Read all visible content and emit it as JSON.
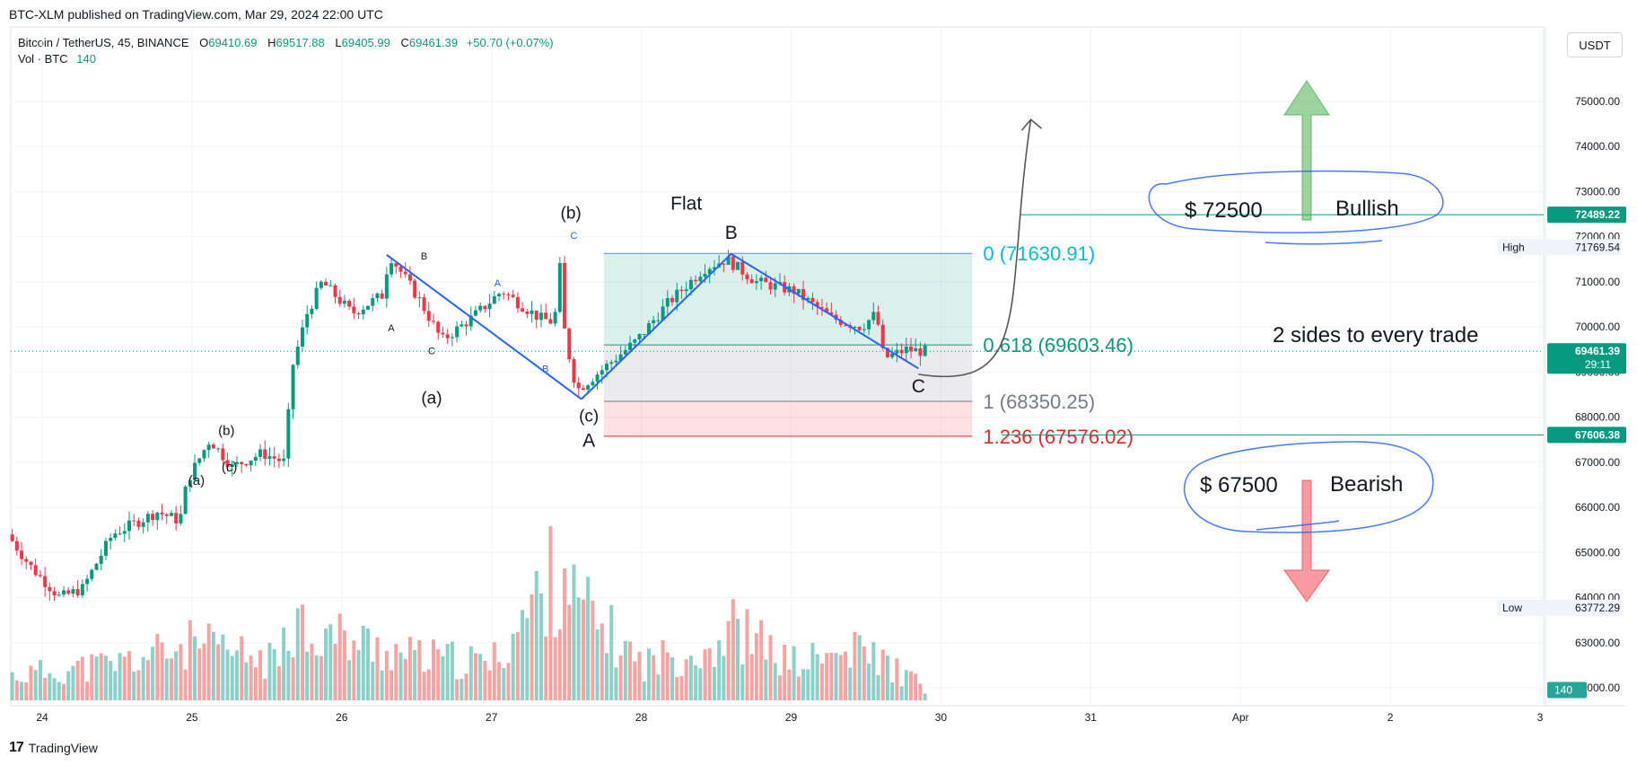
{
  "header": {
    "published": "BTC-XLM published on TradingView.com, Mar 29, 2024 22:00 UTC",
    "symbol": "Bitcoin / TetherUS, 45, BINANCE",
    "o_label": "O",
    "o_value": "69410.69",
    "h_label": "H",
    "h_value": "69517.88",
    "l_label": "L",
    "l_value": "69405.99",
    "c_label": "C",
    "c_value": "69461.39",
    "change": "+50.70 (+0.07%)",
    "vol_label": "Vol · BTC",
    "vol_value": "140",
    "currency": "USDT"
  },
  "footer": {
    "brand": "TradingView"
  },
  "colors": {
    "up": "#089981",
    "down": "#f23645",
    "volUp": "#26a69a88",
    "volDown": "#ef535088",
    "fibTop": "#00bcd4",
    "fibMid": "#089981",
    "fibGray": "#787b86",
    "fibRed": "#e0282e",
    "wave": "#2962ff",
    "grid": "#f0f3fa"
  },
  "chart_data": {
    "type": "candlestick",
    "y_ticks": [
      75000,
      74000,
      73000,
      72000,
      71000,
      70000,
      69000,
      68000,
      67000,
      66000,
      65000,
      64000,
      63000,
      62000
    ],
    "y_tick_labels": [
      "75000.00",
      "74000.00",
      "73000.00",
      "72000.00",
      "71000.00",
      "70000.00",
      "69000.00",
      "68000.00",
      "67000.00",
      "66000.00",
      "65000.00",
      "64000.00",
      "63000.00",
      "62000.00"
    ],
    "ylim": [
      61800,
      75900
    ],
    "x_ticks": [
      {
        "label": "24",
        "t": 0
      },
      {
        "label": "25",
        "t": 1
      },
      {
        "label": "26",
        "t": 2
      },
      {
        "label": "27",
        "t": 3
      },
      {
        "label": "28",
        "t": 4
      },
      {
        "label": "29",
        "t": 5
      },
      {
        "label": "30",
        "t": 6
      },
      {
        "label": "31",
        "t": 7
      },
      {
        "label": "Apr",
        "t": 8
      },
      {
        "label": "2",
        "t": 9
      },
      {
        "label": "3",
        "t": 10
      }
    ],
    "price_path": [
      [
        -0.2,
        65400
      ],
      [
        -0.05,
        64700
      ],
      [
        0.15,
        64000
      ],
      [
        0.3,
        64200
      ],
      [
        0.5,
        65400
      ],
      [
        0.8,
        65900
      ],
      [
        0.95,
        65700
      ],
      [
        1.0,
        66600
      ],
      [
        1.15,
        67500
      ],
      [
        1.3,
        66900
      ],
      [
        1.5,
        67200
      ],
      [
        1.65,
        67000
      ],
      [
        1.7,
        69100
      ],
      [
        1.8,
        70300
      ],
      [
        1.9,
        71000
      ],
      [
        2.1,
        70300
      ],
      [
        2.3,
        70700
      ],
      [
        2.35,
        71600
      ],
      [
        2.55,
        70600
      ],
      [
        2.7,
        69700
      ],
      [
        2.9,
        70200
      ],
      [
        3.1,
        70800
      ],
      [
        3.35,
        70200
      ],
      [
        3.45,
        70100
      ],
      [
        3.5,
        71700
      ],
      [
        3.52,
        69800
      ],
      [
        3.6,
        68600
      ],
      [
        3.75,
        69000
      ],
      [
        4.0,
        69700
      ],
      [
        4.2,
        70500
      ],
      [
        4.45,
        71300
      ],
      [
        4.6,
        71500
      ],
      [
        4.8,
        71000
      ],
      [
        5.05,
        70800
      ],
      [
        5.3,
        70200
      ],
      [
        5.5,
        70000
      ],
      [
        5.6,
        70300
      ],
      [
        5.65,
        69300
      ],
      [
        5.8,
        69500
      ],
      [
        5.9,
        69460
      ]
    ],
    "volume_path": [
      [
        -0.2,
        40
      ],
      [
        0.5,
        60
      ],
      [
        1.0,
        90
      ],
      [
        1.6,
        60
      ],
      [
        1.6,
        150
      ],
      [
        1.85,
        110
      ],
      [
        2.5,
        70
      ],
      [
        3.0,
        60
      ],
      [
        3.5,
        230
      ],
      [
        3.55,
        160
      ],
      [
        4.0,
        60
      ],
      [
        4.5,
        90
      ],
      [
        4.6,
        120
      ],
      [
        5.0,
        60
      ],
      [
        5.5,
        80
      ],
      [
        5.9,
        20
      ]
    ],
    "price_labels": [
      {
        "text": "72489.22",
        "price": 72489.22,
        "kind": "line"
      },
      {
        "text": "71769.54",
        "price": 71769.54,
        "kind": "high",
        "tag": "High"
      },
      {
        "text": "69461.39",
        "price": 69461.39,
        "kind": "last"
      },
      {
        "text": "29:11",
        "price": 69461.39,
        "kind": "countdown"
      },
      {
        "text": "67606.38",
        "price": 67606.38,
        "kind": "line"
      },
      {
        "text": "63772.29",
        "price": 63772.29,
        "kind": "low",
        "tag": "Low"
      },
      {
        "text": "140",
        "price": 61950,
        "kind": "vol"
      }
    ],
    "fib": [
      {
        "ratio": 0,
        "text": "0 (71630.91)",
        "price": 71630.91,
        "color": "#00bcd4"
      },
      {
        "ratio": 0.618,
        "text": "0.618 (69603.46)",
        "price": 69603.46,
        "color": "#089981"
      },
      {
        "ratio": 1,
        "text": "1 (68350.25)",
        "price": 68350.25,
        "color": "#787b86"
      },
      {
        "ratio": 1.236,
        "text": "1.236 (67576.02)",
        "price": 67576.02,
        "color": "#e0282e"
      }
    ],
    "fib_span": [
      3.75,
      6.0
    ],
    "wave_lines": [
      [
        [
          2.3,
          71600
        ],
        [
          3.6,
          68400
        ]
      ],
      [
        [
          3.6,
          68400
        ],
        [
          4.6,
          71620
        ],
        [
          5.85,
          69080
        ]
      ]
    ],
    "wave_labels": [
      {
        "text": "(b)",
        "t": 1.23,
        "price": 67600,
        "size": 15,
        "color": "#131722"
      },
      {
        "text": "(a)",
        "t": 1.03,
        "price": 66500,
        "size": 15,
        "color": "#131722"
      },
      {
        "text": "(c)",
        "t": 1.25,
        "price": 66800,
        "size": 15,
        "color": "#131722"
      },
      {
        "text": "A",
        "t": 2.33,
        "price": 69900,
        "size": 11,
        "color": "#131722"
      },
      {
        "text": "B",
        "t": 2.55,
        "price": 71500,
        "size": 11,
        "color": "#131722"
      },
      {
        "text": "C",
        "t": 2.6,
        "price": 69400,
        "size": 11,
        "color": "#131722"
      },
      {
        "text": "(a)",
        "t": 2.6,
        "price": 68300,
        "size": 19,
        "color": "#131722"
      },
      {
        "text": "A",
        "t": 3.04,
        "price": 70900,
        "size": 11,
        "color": "#2962ff"
      },
      {
        "text": "B",
        "t": 3.36,
        "price": 69000,
        "size": 11,
        "color": "#2962ff"
      },
      {
        "text": "C",
        "t": 3.55,
        "price": 71950,
        "size": 11,
        "color": "#2962ff"
      },
      {
        "text": "(b)",
        "t": 3.53,
        "price": 72400,
        "size": 19,
        "color": "#131722"
      },
      {
        "text": "(c)",
        "t": 3.65,
        "price": 67900,
        "size": 19,
        "color": "#131722"
      },
      {
        "text": "A",
        "t": 3.65,
        "price": 67350,
        "size": 21,
        "color": "#131722"
      },
      {
        "text": "Flat",
        "t": 4.3,
        "price": 72600,
        "size": 21,
        "color": "#131722"
      },
      {
        "text": "B",
        "t": 4.6,
        "price": 71950,
        "size": 21,
        "color": "#131722"
      },
      {
        "text": "C",
        "t": 5.85,
        "price": 68550,
        "size": 21,
        "color": "#131722"
      }
    ],
    "annotations": {
      "bull_price": "$ 72500",
      "bull_word": "Bullish",
      "bear_price": "$ 67500",
      "bear_word": "Bearish",
      "note": "2 sides to every trade"
    }
  }
}
